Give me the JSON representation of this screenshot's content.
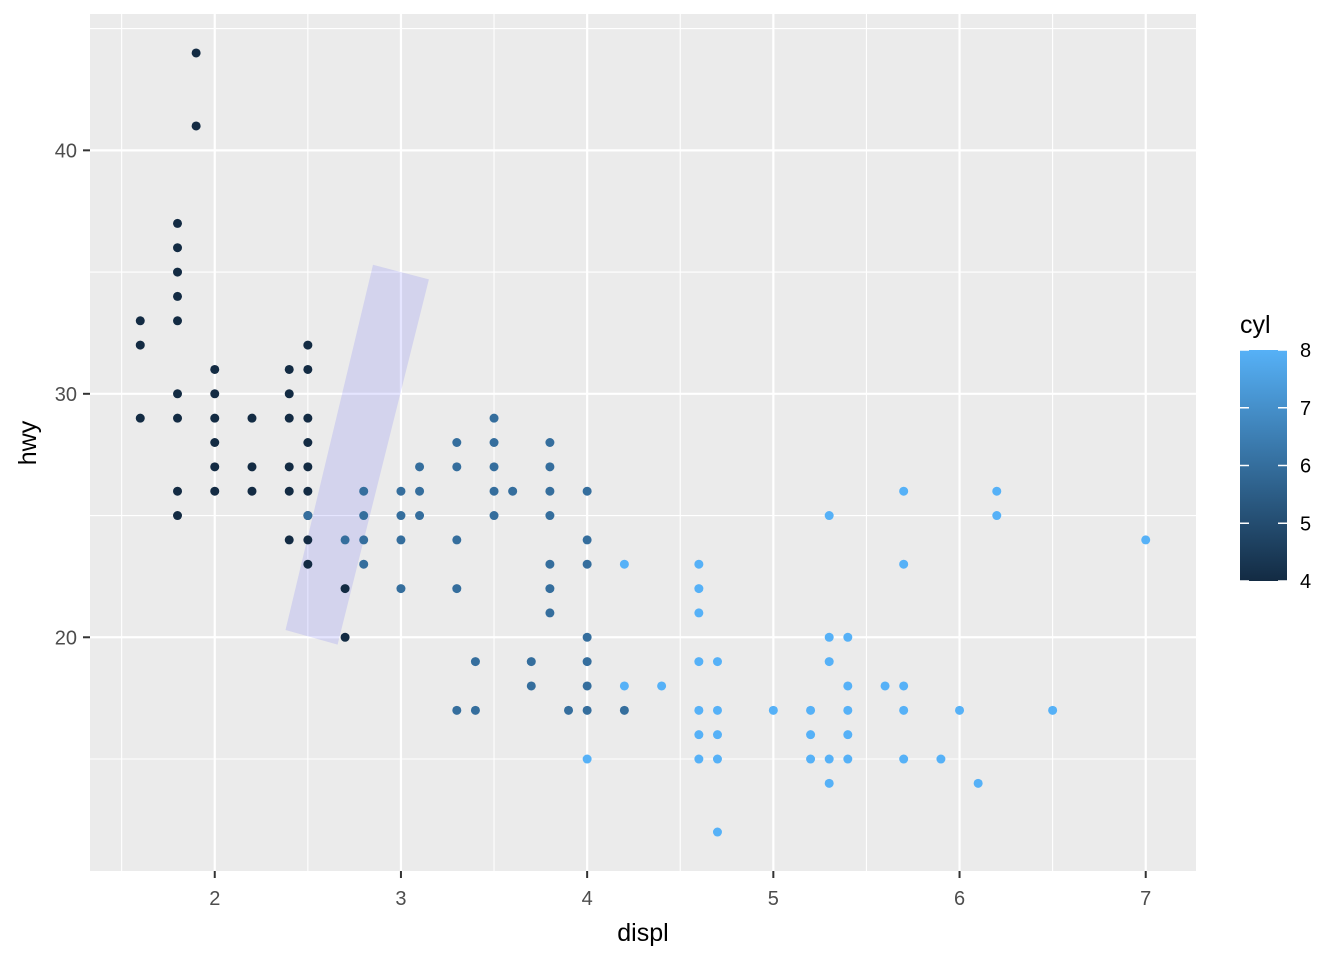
{
  "chart_data": {
    "type": "scatter",
    "title": "",
    "xlabel": "displ",
    "ylabel": "hwy",
    "xlim": [
      1.33,
      7.27
    ],
    "ylim": [
      10.4,
      45.6
    ],
    "x_ticks": [
      2,
      3,
      4,
      5,
      6,
      7
    ],
    "y_ticks": [
      20,
      30,
      40
    ],
    "x_tick_labels": [
      "2",
      "3",
      "4",
      "5",
      "6",
      "7"
    ],
    "y_tick_labels": [
      "20",
      "30",
      "40"
    ],
    "grid": true,
    "background": "#ebebeb",
    "legend": {
      "title": "cyl",
      "position": "right",
      "type": "colorbar",
      "min": 4,
      "max": 8,
      "ticks": [
        "4",
        "5",
        "6",
        "7",
        "8"
      ],
      "low_color": "#132b43",
      "high_color": "#56b1f7"
    },
    "annotation": {
      "type": "rotated-rectangle",
      "fill": "#0000ff",
      "alpha": 0.1,
      "corners": [
        [
          2.38,
          20.3
        ],
        [
          2.85,
          35.3
        ],
        [
          3.15,
          34.7
        ],
        [
          2.66,
          19.7
        ]
      ]
    },
    "points": [
      {
        "x": 1.6,
        "y": 33,
        "cyl": 4
      },
      {
        "x": 1.6,
        "y": 32,
        "cyl": 4
      },
      {
        "x": 1.6,
        "y": 29,
        "cyl": 4
      },
      {
        "x": 1.8,
        "y": 37,
        "cyl": 4
      },
      {
        "x": 1.8,
        "y": 36,
        "cyl": 4
      },
      {
        "x": 1.8,
        "y": 35,
        "cyl": 4
      },
      {
        "x": 1.8,
        "y": 34,
        "cyl": 4
      },
      {
        "x": 1.8,
        "y": 33,
        "cyl": 4
      },
      {
        "x": 1.8,
        "y": 30,
        "cyl": 4
      },
      {
        "x": 1.8,
        "y": 29,
        "cyl": 4
      },
      {
        "x": 1.8,
        "y": 26,
        "cyl": 4
      },
      {
        "x": 1.8,
        "y": 25,
        "cyl": 4
      },
      {
        "x": 1.9,
        "y": 44,
        "cyl": 4
      },
      {
        "x": 1.9,
        "y": 41,
        "cyl": 4
      },
      {
        "x": 2.0,
        "y": 31,
        "cyl": 4
      },
      {
        "x": 2.0,
        "y": 30,
        "cyl": 4
      },
      {
        "x": 2.0,
        "y": 29,
        "cyl": 4
      },
      {
        "x": 2.0,
        "y": 28,
        "cyl": 4
      },
      {
        "x": 2.0,
        "y": 27,
        "cyl": 4
      },
      {
        "x": 2.0,
        "y": 26,
        "cyl": 4
      },
      {
        "x": 2.2,
        "y": 29,
        "cyl": 4
      },
      {
        "x": 2.2,
        "y": 27,
        "cyl": 4
      },
      {
        "x": 2.2,
        "y": 26,
        "cyl": 4
      },
      {
        "x": 2.4,
        "y": 31,
        "cyl": 4
      },
      {
        "x": 2.4,
        "y": 30,
        "cyl": 4
      },
      {
        "x": 2.4,
        "y": 29,
        "cyl": 4
      },
      {
        "x": 2.4,
        "y": 27,
        "cyl": 4
      },
      {
        "x": 2.4,
        "y": 26,
        "cyl": 4
      },
      {
        "x": 2.4,
        "y": 24,
        "cyl": 4
      },
      {
        "x": 2.5,
        "y": 32,
        "cyl": 4
      },
      {
        "x": 2.5,
        "y": 31,
        "cyl": 4
      },
      {
        "x": 2.5,
        "y": 29,
        "cyl": 4
      },
      {
        "x": 2.5,
        "y": 28,
        "cyl": 4
      },
      {
        "x": 2.5,
        "y": 27,
        "cyl": 4
      },
      {
        "x": 2.5,
        "y": 26,
        "cyl": 4
      },
      {
        "x": 2.5,
        "y": 25,
        "cyl": 4
      },
      {
        "x": 2.5,
        "y": 24,
        "cyl": 4
      },
      {
        "x": 2.5,
        "y": 23,
        "cyl": 4
      },
      {
        "x": 2.5,
        "y": 25,
        "cyl": 6
      },
      {
        "x": 2.7,
        "y": 22,
        "cyl": 4
      },
      {
        "x": 2.7,
        "y": 20,
        "cyl": 4
      },
      {
        "x": 2.7,
        "y": 24,
        "cyl": 6
      },
      {
        "x": 2.8,
        "y": 26,
        "cyl": 6
      },
      {
        "x": 2.8,
        "y": 25,
        "cyl": 6
      },
      {
        "x": 2.8,
        "y": 24,
        "cyl": 6
      },
      {
        "x": 2.8,
        "y": 23,
        "cyl": 6
      },
      {
        "x": 3.0,
        "y": 26,
        "cyl": 6
      },
      {
        "x": 3.0,
        "y": 25,
        "cyl": 6
      },
      {
        "x": 3.0,
        "y": 24,
        "cyl": 6
      },
      {
        "x": 3.0,
        "y": 22,
        "cyl": 6
      },
      {
        "x": 3.1,
        "y": 27,
        "cyl": 6
      },
      {
        "x": 3.1,
        "y": 26,
        "cyl": 6
      },
      {
        "x": 3.1,
        "y": 25,
        "cyl": 6
      },
      {
        "x": 3.3,
        "y": 28,
        "cyl": 6
      },
      {
        "x": 3.3,
        "y": 27,
        "cyl": 6
      },
      {
        "x": 3.3,
        "y": 24,
        "cyl": 6
      },
      {
        "x": 3.3,
        "y": 22,
        "cyl": 6
      },
      {
        "x": 3.3,
        "y": 17,
        "cyl": 6
      },
      {
        "x": 3.4,
        "y": 19,
        "cyl": 6
      },
      {
        "x": 3.4,
        "y": 17,
        "cyl": 6
      },
      {
        "x": 3.5,
        "y": 29,
        "cyl": 6
      },
      {
        "x": 3.5,
        "y": 28,
        "cyl": 6
      },
      {
        "x": 3.5,
        "y": 27,
        "cyl": 6
      },
      {
        "x": 3.5,
        "y": 26,
        "cyl": 6
      },
      {
        "x": 3.5,
        "y": 25,
        "cyl": 6
      },
      {
        "x": 3.6,
        "y": 26,
        "cyl": 6
      },
      {
        "x": 3.7,
        "y": 19,
        "cyl": 6
      },
      {
        "x": 3.7,
        "y": 18,
        "cyl": 6
      },
      {
        "x": 3.8,
        "y": 28,
        "cyl": 6
      },
      {
        "x": 3.8,
        "y": 27,
        "cyl": 6
      },
      {
        "x": 3.8,
        "y": 26,
        "cyl": 6
      },
      {
        "x": 3.8,
        "y": 25,
        "cyl": 6
      },
      {
        "x": 3.8,
        "y": 23,
        "cyl": 6
      },
      {
        "x": 3.8,
        "y": 22,
        "cyl": 6
      },
      {
        "x": 3.8,
        "y": 21,
        "cyl": 6
      },
      {
        "x": 3.9,
        "y": 17,
        "cyl": 6
      },
      {
        "x": 4.0,
        "y": 26,
        "cyl": 6
      },
      {
        "x": 4.0,
        "y": 24,
        "cyl": 6
      },
      {
        "x": 4.0,
        "y": 23,
        "cyl": 6
      },
      {
        "x": 4.0,
        "y": 20,
        "cyl": 6
      },
      {
        "x": 4.0,
        "y": 19,
        "cyl": 6
      },
      {
        "x": 4.0,
        "y": 18,
        "cyl": 6
      },
      {
        "x": 4.0,
        "y": 17,
        "cyl": 6
      },
      {
        "x": 4.0,
        "y": 15,
        "cyl": 8
      },
      {
        "x": 4.2,
        "y": 23,
        "cyl": 8
      },
      {
        "x": 4.2,
        "y": 18,
        "cyl": 8
      },
      {
        "x": 4.2,
        "y": 17,
        "cyl": 6
      },
      {
        "x": 4.4,
        "y": 18,
        "cyl": 8
      },
      {
        "x": 4.6,
        "y": 23,
        "cyl": 8
      },
      {
        "x": 4.6,
        "y": 22,
        "cyl": 8
      },
      {
        "x": 4.6,
        "y": 21,
        "cyl": 8
      },
      {
        "x": 4.6,
        "y": 19,
        "cyl": 8
      },
      {
        "x": 4.6,
        "y": 17,
        "cyl": 8
      },
      {
        "x": 4.6,
        "y": 16,
        "cyl": 8
      },
      {
        "x": 4.6,
        "y": 15,
        "cyl": 8
      },
      {
        "x": 4.7,
        "y": 19,
        "cyl": 8
      },
      {
        "x": 4.7,
        "y": 17,
        "cyl": 8
      },
      {
        "x": 4.7,
        "y": 16,
        "cyl": 8
      },
      {
        "x": 4.7,
        "y": 15,
        "cyl": 8
      },
      {
        "x": 4.7,
        "y": 12,
        "cyl": 8
      },
      {
        "x": 5.0,
        "y": 17,
        "cyl": 8
      },
      {
        "x": 5.2,
        "y": 17,
        "cyl": 8
      },
      {
        "x": 5.2,
        "y": 16,
        "cyl": 8
      },
      {
        "x": 5.2,
        "y": 15,
        "cyl": 8
      },
      {
        "x": 5.3,
        "y": 25,
        "cyl": 8
      },
      {
        "x": 5.3,
        "y": 20,
        "cyl": 8
      },
      {
        "x": 5.3,
        "y": 19,
        "cyl": 8
      },
      {
        "x": 5.3,
        "y": 15,
        "cyl": 8
      },
      {
        "x": 5.3,
        "y": 14,
        "cyl": 8
      },
      {
        "x": 5.4,
        "y": 20,
        "cyl": 8
      },
      {
        "x": 5.4,
        "y": 18,
        "cyl": 8
      },
      {
        "x": 5.4,
        "y": 17,
        "cyl": 8
      },
      {
        "x": 5.4,
        "y": 16,
        "cyl": 8
      },
      {
        "x": 5.4,
        "y": 15,
        "cyl": 8
      },
      {
        "x": 5.6,
        "y": 18,
        "cyl": 8
      },
      {
        "x": 5.7,
        "y": 26,
        "cyl": 8
      },
      {
        "x": 5.7,
        "y": 23,
        "cyl": 8
      },
      {
        "x": 5.7,
        "y": 18,
        "cyl": 8
      },
      {
        "x": 5.7,
        "y": 17,
        "cyl": 8
      },
      {
        "x": 5.7,
        "y": 15,
        "cyl": 8
      },
      {
        "x": 5.9,
        "y": 15,
        "cyl": 8
      },
      {
        "x": 6.0,
        "y": 17,
        "cyl": 8
      },
      {
        "x": 6.1,
        "y": 14,
        "cyl": 8
      },
      {
        "x": 6.2,
        "y": 26,
        "cyl": 8
      },
      {
        "x": 6.2,
        "y": 25,
        "cyl": 8
      },
      {
        "x": 6.5,
        "y": 17,
        "cyl": 8
      },
      {
        "x": 7.0,
        "y": 24,
        "cyl": 8
      }
    ]
  }
}
